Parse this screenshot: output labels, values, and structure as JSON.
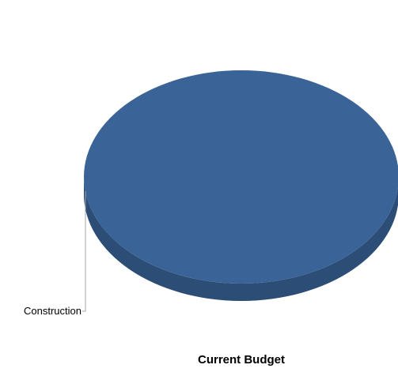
{
  "chart_data": {
    "type": "pie",
    "title": "Current Budget",
    "slices": [
      {
        "label": "Construction",
        "value": 100
      }
    ],
    "colors": {
      "top": "#3a6497",
      "side": "#2c4d75",
      "leader": "#a6a6a6"
    },
    "legend": "none"
  }
}
